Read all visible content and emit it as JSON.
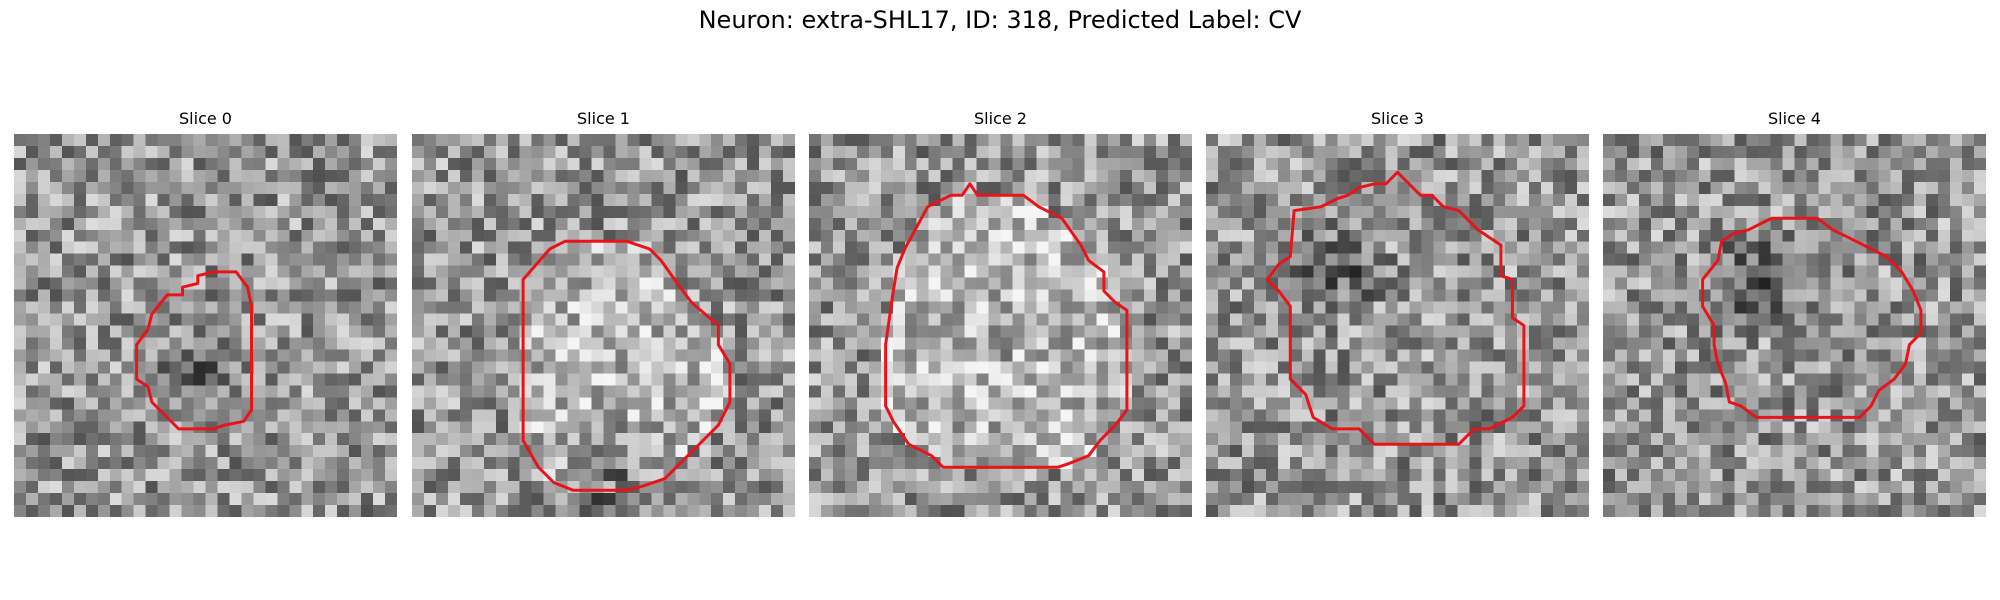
{
  "figure": {
    "title": "Neuron: extra-SHL17, ID: 318, Predicted Label: CV"
  },
  "style": {
    "outline_color": "#e8141a"
  },
  "panels": [
    {
      "label": "Slice 0",
      "pattern": {
        "dark_center": [
          0.45,
          0.62
        ],
        "dark_radius": 0.13,
        "bright_ring": false,
        "seed": 11
      },
      "outline": [
        [
          0.36,
          0.47
        ],
        [
          0.4,
          0.42
        ],
        [
          0.44,
          0.42
        ],
        [
          0.44,
          0.4
        ],
        [
          0.48,
          0.39
        ],
        [
          0.48,
          0.37
        ],
        [
          0.52,
          0.36
        ],
        [
          0.55,
          0.36
        ],
        [
          0.58,
          0.36
        ],
        [
          0.61,
          0.4
        ],
        [
          0.62,
          0.45
        ],
        [
          0.62,
          0.55
        ],
        [
          0.62,
          0.65
        ],
        [
          0.62,
          0.72
        ],
        [
          0.6,
          0.75
        ],
        [
          0.55,
          0.76
        ],
        [
          0.52,
          0.77
        ],
        [
          0.43,
          0.77
        ],
        [
          0.38,
          0.72
        ],
        [
          0.36,
          0.7
        ],
        [
          0.35,
          0.66
        ],
        [
          0.32,
          0.64
        ],
        [
          0.32,
          0.55
        ],
        [
          0.35,
          0.51
        ]
      ]
    },
    {
      "label": "Slice 1",
      "pattern": {
        "dark_center": [
          0.52,
          0.88
        ],
        "dark_radius": 0.18,
        "bright_ring": true,
        "seed": 23
      },
      "outline": [
        [
          0.29,
          0.38
        ],
        [
          0.36,
          0.3
        ],
        [
          0.4,
          0.28
        ],
        [
          0.48,
          0.28
        ],
        [
          0.56,
          0.28
        ],
        [
          0.62,
          0.3
        ],
        [
          0.65,
          0.33
        ],
        [
          0.7,
          0.4
        ],
        [
          0.73,
          0.44
        ],
        [
          0.8,
          0.5
        ],
        [
          0.8,
          0.55
        ],
        [
          0.83,
          0.6
        ],
        [
          0.83,
          0.7
        ],
        [
          0.8,
          0.76
        ],
        [
          0.76,
          0.8
        ],
        [
          0.72,
          0.84
        ],
        [
          0.66,
          0.9
        ],
        [
          0.6,
          0.92
        ],
        [
          0.56,
          0.93
        ],
        [
          0.48,
          0.93
        ],
        [
          0.42,
          0.93
        ],
        [
          0.37,
          0.91
        ],
        [
          0.33,
          0.87
        ],
        [
          0.29,
          0.8
        ],
        [
          0.29,
          0.7
        ],
        [
          0.29,
          0.5
        ]
      ]
    },
    {
      "label": "Slice 2",
      "pattern": {
        "dark_center": [
          0.5,
          0.55
        ],
        "dark_radius": 0.05,
        "bright_ring": true,
        "seed": 37
      },
      "outline": [
        [
          0.25,
          0.3
        ],
        [
          0.31,
          0.19
        ],
        [
          0.37,
          0.16
        ],
        [
          0.4,
          0.16
        ],
        [
          0.42,
          0.13
        ],
        [
          0.44,
          0.16
        ],
        [
          0.5,
          0.16
        ],
        [
          0.56,
          0.16
        ],
        [
          0.6,
          0.19
        ],
        [
          0.66,
          0.22
        ],
        [
          0.71,
          0.29
        ],
        [
          0.73,
          0.33
        ],
        [
          0.77,
          0.36
        ],
        [
          0.77,
          0.41
        ],
        [
          0.8,
          0.44
        ],
        [
          0.83,
          0.46
        ],
        [
          0.83,
          0.62
        ],
        [
          0.83,
          0.72
        ],
        [
          0.8,
          0.76
        ],
        [
          0.76,
          0.8
        ],
        [
          0.73,
          0.84
        ],
        [
          0.68,
          0.86
        ],
        [
          0.65,
          0.87
        ],
        [
          0.6,
          0.87
        ],
        [
          0.5,
          0.87
        ],
        [
          0.4,
          0.87
        ],
        [
          0.35,
          0.87
        ],
        [
          0.32,
          0.84
        ],
        [
          0.26,
          0.81
        ],
        [
          0.22,
          0.75
        ],
        [
          0.2,
          0.71
        ],
        [
          0.2,
          0.55
        ],
        [
          0.22,
          0.41
        ],
        [
          0.23,
          0.35
        ]
      ]
    },
    {
      "label": "Slice 3",
      "pattern": {
        "dark_center": [
          0.35,
          0.35
        ],
        "dark_radius": 0.15,
        "bright_ring": false,
        "seed": 41
      },
      "outline": [
        [
          0.16,
          0.38
        ],
        [
          0.19,
          0.34
        ],
        [
          0.22,
          0.32
        ],
        [
          0.23,
          0.2
        ],
        [
          0.3,
          0.19
        ],
        [
          0.34,
          0.17
        ],
        [
          0.37,
          0.16
        ],
        [
          0.4,
          0.14
        ],
        [
          0.44,
          0.13
        ],
        [
          0.47,
          0.13
        ],
        [
          0.5,
          0.1
        ],
        [
          0.53,
          0.13
        ],
        [
          0.56,
          0.16
        ],
        [
          0.59,
          0.16
        ],
        [
          0.62,
          0.19
        ],
        [
          0.66,
          0.2
        ],
        [
          0.71,
          0.25
        ],
        [
          0.77,
          0.29
        ],
        [
          0.77,
          0.37
        ],
        [
          0.8,
          0.38
        ],
        [
          0.8,
          0.48
        ],
        [
          0.83,
          0.5
        ],
        [
          0.83,
          0.66
        ],
        [
          0.83,
          0.71
        ],
        [
          0.8,
          0.74
        ],
        [
          0.74,
          0.77
        ],
        [
          0.7,
          0.77
        ],
        [
          0.66,
          0.81
        ],
        [
          0.62,
          0.81
        ],
        [
          0.56,
          0.81
        ],
        [
          0.44,
          0.81
        ],
        [
          0.4,
          0.77
        ],
        [
          0.33,
          0.77
        ],
        [
          0.28,
          0.74
        ],
        [
          0.26,
          0.68
        ],
        [
          0.22,
          0.64
        ],
        [
          0.22,
          0.5
        ],
        [
          0.22,
          0.45
        ],
        [
          0.19,
          0.41
        ]
      ]
    },
    {
      "label": "Slice 4",
      "pattern": {
        "dark_center": [
          0.4,
          0.38
        ],
        "dark_radius": 0.16,
        "bright_ring": false,
        "seed": 53
      },
      "outline": [
        [
          0.26,
          0.38
        ],
        [
          0.3,
          0.33
        ],
        [
          0.31,
          0.28
        ],
        [
          0.34,
          0.26
        ],
        [
          0.38,
          0.25
        ],
        [
          0.42,
          0.23
        ],
        [
          0.44,
          0.22
        ],
        [
          0.5,
          0.22
        ],
        [
          0.56,
          0.22
        ],
        [
          0.6,
          0.25
        ],
        [
          0.66,
          0.28
        ],
        [
          0.74,
          0.32
        ],
        [
          0.78,
          0.36
        ],
        [
          0.81,
          0.41
        ],
        [
          0.83,
          0.46
        ],
        [
          0.83,
          0.52
        ],
        [
          0.8,
          0.55
        ],
        [
          0.79,
          0.6
        ],
        [
          0.76,
          0.64
        ],
        [
          0.72,
          0.67
        ],
        [
          0.7,
          0.71
        ],
        [
          0.67,
          0.74
        ],
        [
          0.6,
          0.74
        ],
        [
          0.53,
          0.74
        ],
        [
          0.4,
          0.74
        ],
        [
          0.36,
          0.71
        ],
        [
          0.33,
          0.7
        ],
        [
          0.32,
          0.65
        ],
        [
          0.3,
          0.6
        ],
        [
          0.29,
          0.55
        ],
        [
          0.29,
          0.5
        ],
        [
          0.26,
          0.45
        ]
      ]
    }
  ]
}
